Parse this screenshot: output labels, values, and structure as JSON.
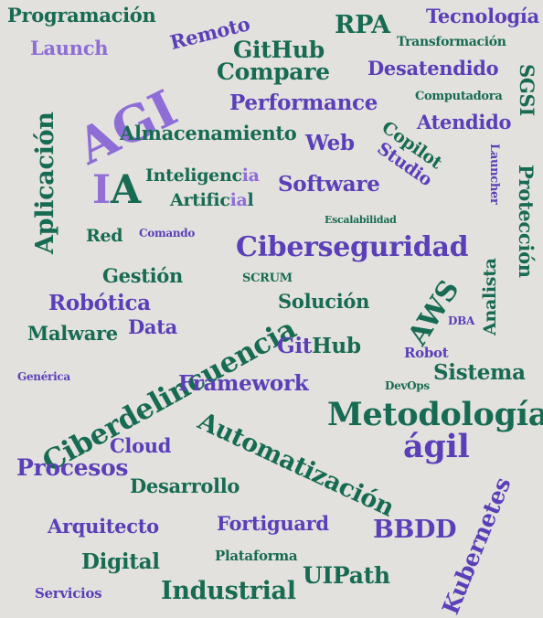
{
  "words": {
    "programacion": "Programación",
    "remoto": "Remoto",
    "rpa": "RPA",
    "tecnologia": "Tecnología",
    "launch": "Launch",
    "github_compare_1": "GitHub",
    "github_compare_2": "Compare",
    "transformacion": "Transformación",
    "agi": "AGI",
    "desatendido": "Desatendido",
    "sgsi": "SGSI",
    "aplicacion": "Aplicación",
    "performance": "Performance",
    "computadora": "Computadora",
    "almacenamiento": "Almacenamiento",
    "web": "Web",
    "atendido": "Atendido",
    "copilot_studio_1": "Copilot",
    "copilot_studio_2": "Studio",
    "launcher": "Launcher",
    "proteccion": "Protección",
    "ia_i": "I",
    "ia_a": "A",
    "inteligencia_1": "Inteligenc",
    "inteligencia_2": "ia",
    "artificial_1": "Artific",
    "artificial_2": "ia",
    "artificial_3": "l",
    "software": "Software",
    "escalabilidad": "Escalabilidad",
    "red": "Red",
    "comando": "Comando",
    "ciberseguridad": "Ciberseguridad",
    "gestion": "Gestión",
    "scrum": "SCRUM",
    "aws": "AWS",
    "analista": "Analista",
    "robotica": "Robótica",
    "solucion": "Solución",
    "dba": "DBA",
    "ciberdelincuencia": "Ciberdelincuencia",
    "malware": "Malware",
    "data": "Data",
    "github_1": "Git",
    "github_2": "Hub",
    "robot": "Robot",
    "generica": "Genérica",
    "framework": "Framework",
    "devops": "DevOps",
    "sistema": "Sistema",
    "metodologia": "Metodología",
    "agil": "ágil",
    "automatizacion": "Automatización",
    "cloud": "Cloud",
    "procesos": "Procesos",
    "desarrollo": "Desarrollo",
    "kubernetes": "Kubernetes",
    "arquitecto": "Arquitecto",
    "fortiguard": "Fortiguard",
    "bbdd": "BBDD",
    "digital": "Digital",
    "plataforma": "Plataforma",
    "uipath": "UIPath",
    "servicios": "Servicios",
    "industrial": "Industrial"
  },
  "colors": {
    "background": "#e3e1de",
    "green": "#176b52",
    "purple": "#5b3fb8",
    "lavender": "#8e6ed6"
  }
}
